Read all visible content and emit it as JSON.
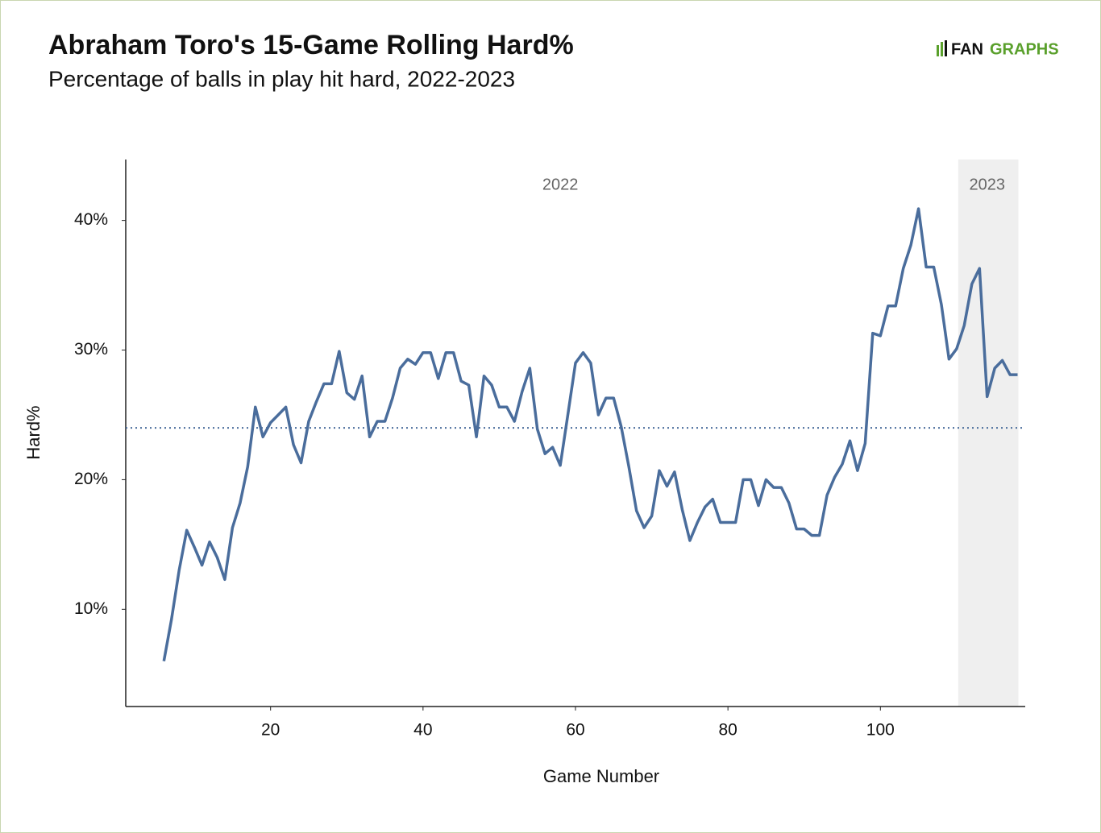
{
  "chart_data": {
    "type": "line",
    "title": "Abraham Toro's 15-Game Rolling Hard%",
    "subtitle": "Percentage of balls in play hit hard, 2022-2023",
    "x_label": "Game Number",
    "y_label": "Hard%",
    "logo": {
      "left": "FAN",
      "right": "GRAPHS"
    },
    "color": "#4a6d9c",
    "x": [
      6,
      7,
      8,
      9,
      10,
      11,
      12,
      13,
      14,
      15,
      16,
      17,
      18,
      19,
      20,
      21,
      22,
      23,
      24,
      25,
      26,
      27,
      28,
      29,
      30,
      31,
      32,
      33,
      34,
      35,
      36,
      37,
      38,
      39,
      40,
      41,
      42,
      43,
      44,
      45,
      46,
      47,
      48,
      49,
      50,
      51,
      52,
      53,
      54,
      55,
      56,
      57,
      58,
      59,
      60,
      61,
      62,
      63,
      64,
      65,
      66,
      67,
      68,
      69,
      70,
      71,
      72,
      73,
      74,
      75,
      76,
      77,
      78,
      79,
      80,
      81,
      82,
      83,
      84,
      85,
      86,
      87,
      88,
      89,
      90,
      91,
      92,
      93,
      94,
      95,
      96,
      97,
      98,
      99,
      100,
      101,
      102,
      103,
      104,
      105,
      106,
      107,
      108,
      109,
      110,
      111,
      112,
      113,
      114,
      115,
      116,
      117,
      118
    ],
    "values": [
      6.0,
      9.2,
      13.0,
      16.1,
      14.8,
      13.4,
      15.2,
      14.0,
      12.3,
      16.3,
      18.2,
      21.0,
      25.6,
      23.3,
      24.4,
      25.0,
      25.6,
      22.7,
      21.3,
      24.5,
      26.0,
      27.4,
      27.4,
      29.9,
      26.7,
      26.2,
      28.0,
      23.3,
      24.5,
      24.5,
      26.3,
      28.6,
      29.3,
      28.9,
      29.8,
      29.8,
      27.8,
      29.8,
      29.8,
      27.6,
      27.3,
      23.3,
      28.0,
      27.3,
      25.6,
      25.6,
      24.5,
      26.8,
      28.6,
      23.9,
      22.0,
      22.5,
      21.1,
      25.0,
      29.0,
      29.8,
      29.0,
      25.0,
      26.3,
      26.3,
      24.1,
      21.0,
      17.6,
      16.3,
      17.2,
      20.7,
      19.5,
      20.6,
      17.7,
      15.3,
      16.7,
      17.9,
      18.5,
      16.7,
      16.7,
      16.7,
      20.0,
      20.0,
      18.0,
      20.0,
      19.4,
      19.4,
      18.2,
      16.2,
      16.2,
      15.7,
      15.7,
      18.8,
      20.2,
      21.2,
      23.0,
      20.7,
      22.8,
      31.3,
      31.1,
      33.4,
      33.4,
      36.3,
      38.1,
      40.9,
      36.4,
      36.4,
      33.5,
      29.3,
      30.1,
      31.9,
      35.1,
      36.3,
      26.4,
      28.6,
      29.2,
      28.1,
      28.1
    ],
    "xlim": [
      1,
      119
    ],
    "ylim": [
      2.5,
      44.7
    ],
    "xticks": [
      20,
      40,
      60,
      80,
      100
    ],
    "yticks": [
      {
        "value": 10,
        "label": "10%"
      },
      {
        "value": 20,
        "label": "20%"
      },
      {
        "value": 30,
        "label": "30%"
      },
      {
        "value": 40,
        "label": "40%"
      }
    ],
    "reference_line": 24.0,
    "highlight_xlim": [
      110.2,
      118.1
    ],
    "annotations": [
      {
        "text": "2022",
        "x": 58
      },
      {
        "text": "2023",
        "x": 114
      }
    ]
  }
}
